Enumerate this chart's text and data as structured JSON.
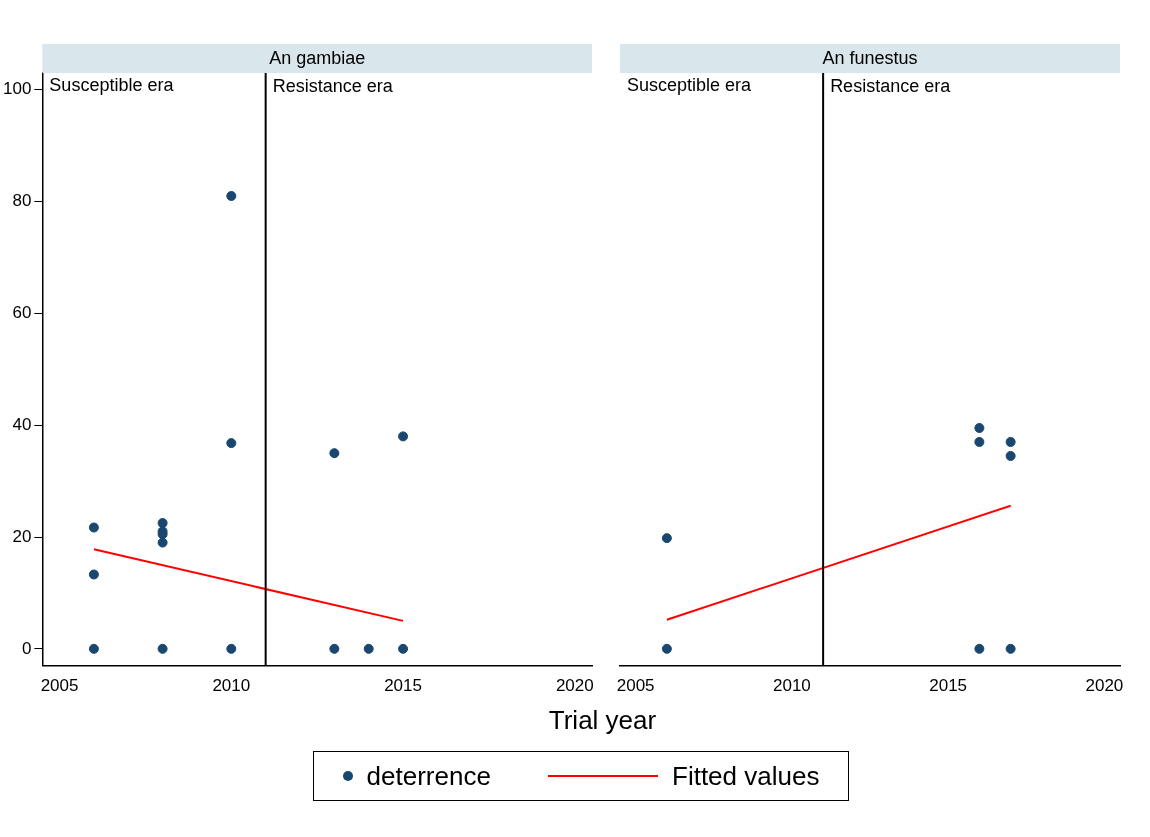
{
  "chart_data": [
    {
      "type": "scatter",
      "title": "An gambiae",
      "xlabel": "Trial year",
      "xlim": [
        2004.5,
        2020.5
      ],
      "xticks": [
        2005,
        2010,
        2015,
        2020
      ],
      "ylim": [
        -3,
        103
      ],
      "yticks": [
        0,
        20,
        40,
        60,
        80,
        100
      ],
      "grid": false,
      "legend": "bottom",
      "series": [
        {
          "name": "deterrence",
          "marker": "circle",
          "color": "#1a476f",
          "x": [
            2006,
            2006,
            2006,
            2008,
            2008,
            2008,
            2008,
            2008,
            2010,
            2010,
            2010,
            2013,
            2013,
            2014,
            2015,
            2015
          ],
          "values": [
            21.7,
            13.3,
            0,
            22.5,
            21,
            20.5,
            19,
            0,
            81,
            36.8,
            0,
            35,
            0,
            0,
            38,
            0
          ]
        },
        {
          "name": "Fitted values",
          "type": "line",
          "marker": "none",
          "color": "#ff0000",
          "x": [
            2006,
            2015
          ],
          "values": [
            17.8,
            5
          ]
        }
      ],
      "ref_lines": [
        {
          "axis": "x",
          "value": 2011,
          "label": "Resistance era",
          "color": "#000000"
        }
      ],
      "annotations": [
        "Susceptible era"
      ]
    },
    {
      "type": "scatter",
      "title": "An funestus",
      "xlim": [
        2004.5,
        2020.5
      ],
      "xticks": [
        2005,
        2010,
        2015,
        2020
      ],
      "ylim": [
        -3,
        103
      ],
      "grid": false,
      "tick_labels": "x",
      "series": [
        {
          "marker": "circle",
          "color": "#1a476f",
          "x": [
            2006,
            2006,
            2016,
            2016,
            2016,
            2017,
            2017,
            2017
          ],
          "values": [
            19.8,
            0,
            39.5,
            37,
            0,
            37,
            34.5,
            0
          ]
        },
        {
          "type": "line",
          "marker": "none",
          "color": "#ff0000",
          "x": [
            2006,
            2017
          ],
          "values": [
            5.2,
            25.6
          ]
        }
      ],
      "ref_lines": [
        {
          "axis": "x",
          "value": 2011,
          "label": "Resistance era",
          "color": "#000000"
        }
      ],
      "annotations": [
        "Susceptible era"
      ]
    }
  ]
}
